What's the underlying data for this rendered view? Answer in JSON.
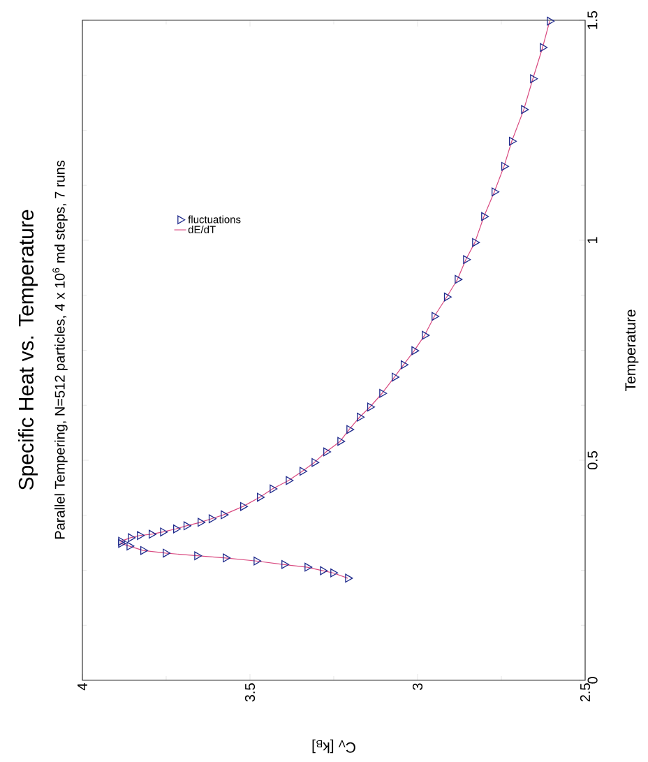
{
  "chart_data": {
    "type": "line",
    "title": "Specific Heat vs. Temperature",
    "subtitle": "Parallel Tempering, N=512 particles, 4 x 10$^{6}$ md steps, 7 runs",
    "xlabel": "C$_{V}$ [k$_{B}$]",
    "ylabel": "Temperature",
    "xlim": [
      4,
      2.5
    ],
    "ylim": [
      0,
      1.5
    ],
    "xticks": [
      4,
      3.5,
      3,
      2.5
    ],
    "yticks": [
      0,
      0.5,
      1,
      1.5
    ],
    "legend": "top left",
    "series": [
      {
        "name": "fluctuations",
        "type": "scatter",
        "marker": "triangle",
        "color": "#1f2a8c",
        "x": [
          3.208,
          3.252,
          3.283,
          3.329,
          3.398,
          3.481,
          3.573,
          3.658,
          3.752,
          3.819,
          3.86,
          3.885,
          3.885,
          3.856,
          3.829,
          3.794,
          3.76,
          3.721,
          3.69,
          3.648,
          3.615,
          3.579,
          3.521,
          3.471,
          3.433,
          3.385,
          3.344,
          3.308,
          3.273,
          3.231,
          3.204,
          3.173,
          3.142,
          3.106,
          3.069,
          3.042,
          3.01,
          2.979,
          2.95,
          2.913,
          2.881,
          2.856,
          2.829,
          2.802,
          2.771,
          2.742,
          2.719,
          2.683,
          2.656,
          2.627,
          2.606
        ],
        "values": [
          0.232,
          0.244,
          0.249,
          0.257,
          0.263,
          0.271,
          0.278,
          0.283,
          0.289,
          0.295,
          0.305,
          0.311,
          0.316,
          0.324,
          0.329,
          0.332,
          0.337,
          0.344,
          0.351,
          0.359,
          0.367,
          0.376,
          0.395,
          0.416,
          0.435,
          0.454,
          0.475,
          0.495,
          0.519,
          0.543,
          0.57,
          0.598,
          0.621,
          0.652,
          0.689,
          0.717,
          0.749,
          0.784,
          0.827,
          0.871,
          0.911,
          0.956,
          0.995,
          1.054,
          1.11,
          1.168,
          1.225,
          1.297,
          1.367,
          1.438,
          1.498
        ]
      },
      {
        "name": "dE/dT",
        "type": "line",
        "marker": "none",
        "line_style": "solid",
        "color": "#d94a80",
        "x": [
          3.208,
          3.252,
          3.283,
          3.329,
          3.398,
          3.481,
          3.573,
          3.658,
          3.752,
          3.819,
          3.86,
          3.885,
          3.885,
          3.856,
          3.829,
          3.794,
          3.76,
          3.721,
          3.69,
          3.648,
          3.615,
          3.579,
          3.521,
          3.471,
          3.433,
          3.385,
          3.344,
          3.308,
          3.273,
          3.231,
          3.204,
          3.173,
          3.142,
          3.106,
          3.069,
          3.042,
          3.01,
          2.979,
          2.95,
          2.913,
          2.881,
          2.856,
          2.829,
          2.802,
          2.771,
          2.742,
          2.719,
          2.683,
          2.656,
          2.627,
          2.606
        ],
        "values": [
          0.232,
          0.244,
          0.249,
          0.257,
          0.263,
          0.271,
          0.278,
          0.283,
          0.289,
          0.295,
          0.305,
          0.311,
          0.316,
          0.324,
          0.329,
          0.332,
          0.337,
          0.344,
          0.351,
          0.359,
          0.367,
          0.376,
          0.395,
          0.416,
          0.435,
          0.454,
          0.475,
          0.495,
          0.519,
          0.543,
          0.57,
          0.598,
          0.621,
          0.652,
          0.689,
          0.717,
          0.749,
          0.784,
          0.827,
          0.871,
          0.911,
          0.956,
          0.995,
          1.054,
          1.11,
          1.168,
          1.225,
          1.297,
          1.367,
          1.438,
          1.498
        ]
      }
    ]
  }
}
